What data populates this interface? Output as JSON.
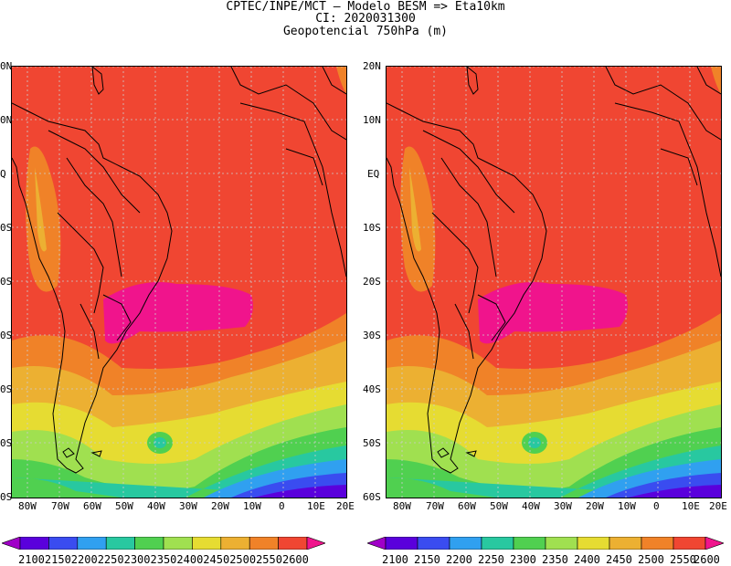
{
  "title": {
    "line1": "CPTEC/INPE/MCT –  Modelo BESM => Eta10km",
    "line2": "CI: 2020031300",
    "line3": "Geopotencial 750hPa (m)"
  },
  "lat_labels_left": [
    "0N",
    "0N",
    "Q",
    "0S",
    "0S",
    "0S",
    "0S",
    "0S",
    "0S"
  ],
  "lat_labels_right": [
    "20N",
    "10N",
    "EQ",
    "10S",
    "20S",
    "30S",
    "40S",
    "50S",
    "60S"
  ],
  "lon_labels": [
    "80W",
    "70W",
    "60W",
    "50W",
    "40W",
    "30W",
    "20W",
    "10W",
    "0",
    "10E",
    "20E"
  ],
  "colorbar": {
    "colors": [
      "#a000c8",
      "#5a00dc",
      "#3a4cf0",
      "#30a0f0",
      "#28c8a0",
      "#50d050",
      "#a0e050",
      "#e6dc32",
      "#ecb032",
      "#f08228",
      "#f04632",
      "#f0148c"
    ],
    "labels_left": "21002150220022502300235024002450250025502600",
    "labels_right": [
      "2100",
      "2150",
      "2200",
      "2250",
      "2300",
      "2350",
      "2400",
      "2450",
      "2500",
      "2550",
      "2600"
    ]
  }
}
